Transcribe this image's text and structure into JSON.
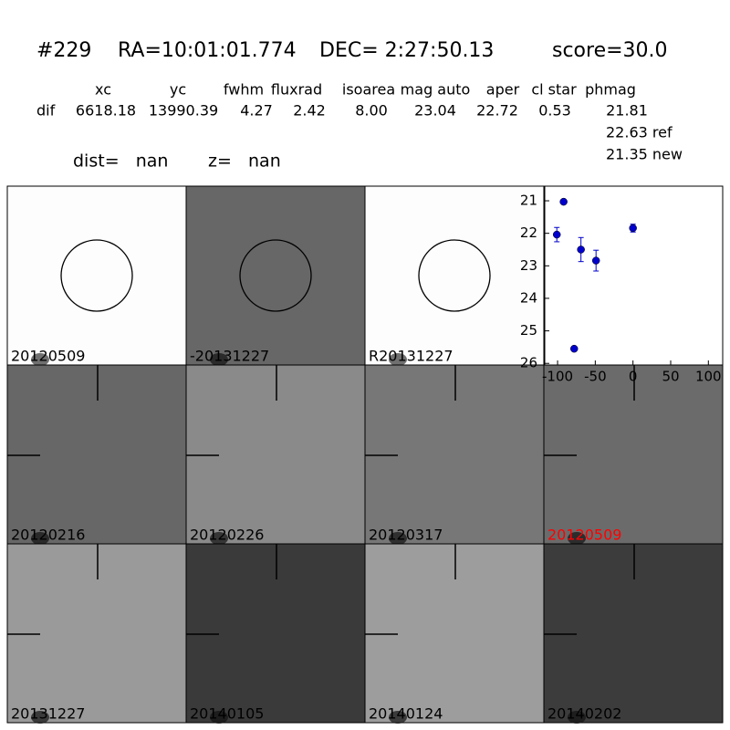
{
  "header": {
    "id": "#229",
    "ra": "RA=10:01:01.774",
    "dec": "DEC= 2:27:50.13",
    "score": "score=30.0"
  },
  "table": {
    "columns": [
      "xc",
      "yc",
      "fwhm",
      "fluxrad",
      "isoarea",
      "mag auto",
      "aper",
      "cl star",
      "phmag"
    ],
    "row_label": "dif",
    "values": [
      "6618.18",
      "13990.39",
      "4.27",
      "2.42",
      "8.00",
      "23.04",
      "22.72",
      "0.53",
      "21.81"
    ],
    "ref": "22.63 ref",
    "new": "21.35 new"
  },
  "dist": "dist=   nan",
  "z": "z=   nan",
  "panels": [
    {
      "label": "20120509",
      "background": "#fdfdfd",
      "marker": "circle"
    },
    {
      "label": "-20131227",
      "background": "#676767",
      "marker": "circle"
    },
    {
      "label": "R20131227",
      "background": "#fdfdfd",
      "marker": "circle"
    },
    {
      "label": "20120216",
      "background": "#676767",
      "marker": "cross"
    },
    {
      "label": "20120226",
      "background": "#8a8a8a",
      "marker": "cross"
    },
    {
      "label": "20120317",
      "background": "#777777",
      "marker": "cross"
    },
    {
      "label": "20120509",
      "background": "#6b6b6b",
      "marker": "cross",
      "label_color": "#ff0000"
    },
    {
      "label": "20131227",
      "background": "#9a9a9a",
      "marker": "cross"
    },
    {
      "label": "20140105",
      "background": "#3a3a3a",
      "marker": "cross"
    },
    {
      "label": "20140124",
      "background": "#9d9d9d",
      "marker": "cross"
    },
    {
      "label": "20140202",
      "background": "#3c3c3c",
      "marker": "cross"
    }
  ],
  "chart_data": {
    "type": "errorbar",
    "x": [
      -92,
      -101,
      -78,
      -69,
      -49,
      0
    ],
    "series": [
      {
        "color": "#0000cc",
        "values": [
          21.03,
          22.04,
          25.55,
          22.5,
          22.84,
          21.84
        ],
        "errors": [
          0.06,
          0.22,
          0.07,
          0.37,
          0.32,
          0.12
        ]
      }
    ],
    "xlim": [
      -117,
      119
    ],
    "ylim": [
      26.05,
      20.55
    ],
    "xticks": [
      -100,
      -50,
      0,
      50,
      100
    ],
    "yticks": [
      21,
      22,
      23,
      24,
      25,
      26
    ]
  }
}
